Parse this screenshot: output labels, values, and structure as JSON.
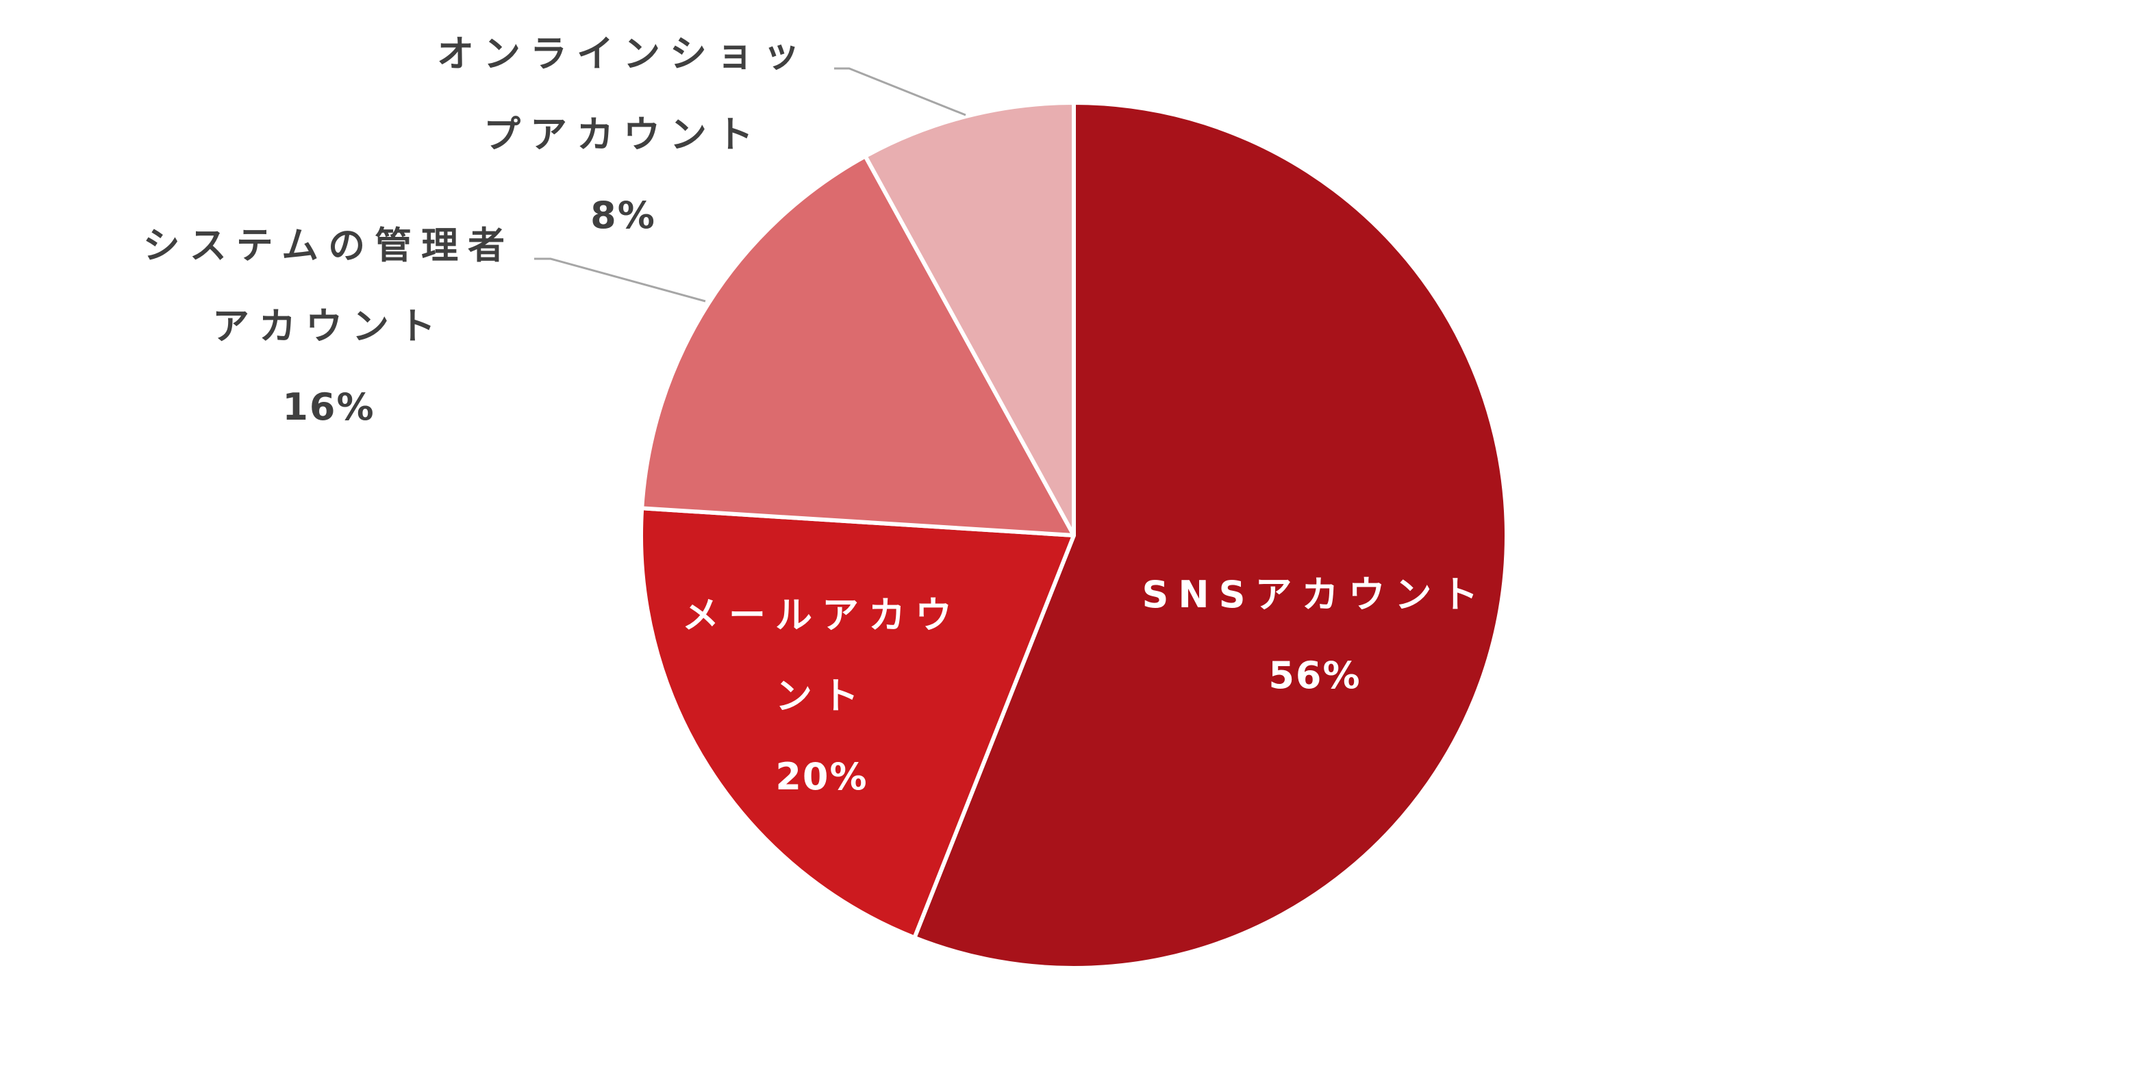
{
  "chart_data": {
    "type": "pie",
    "categories": [
      "SNSアカウント",
      "メールアカウント",
      "システムの管理者アカウント",
      "オンラインショップアカウント"
    ],
    "values": [
      56,
      20,
      16,
      8
    ],
    "value_labels": [
      "56%",
      "20%",
      "16%",
      "8%"
    ],
    "colors": [
      "#a8121a",
      "#cc1a1f",
      "#dc6b6e",
      "#e8aeb0"
    ]
  }
}
